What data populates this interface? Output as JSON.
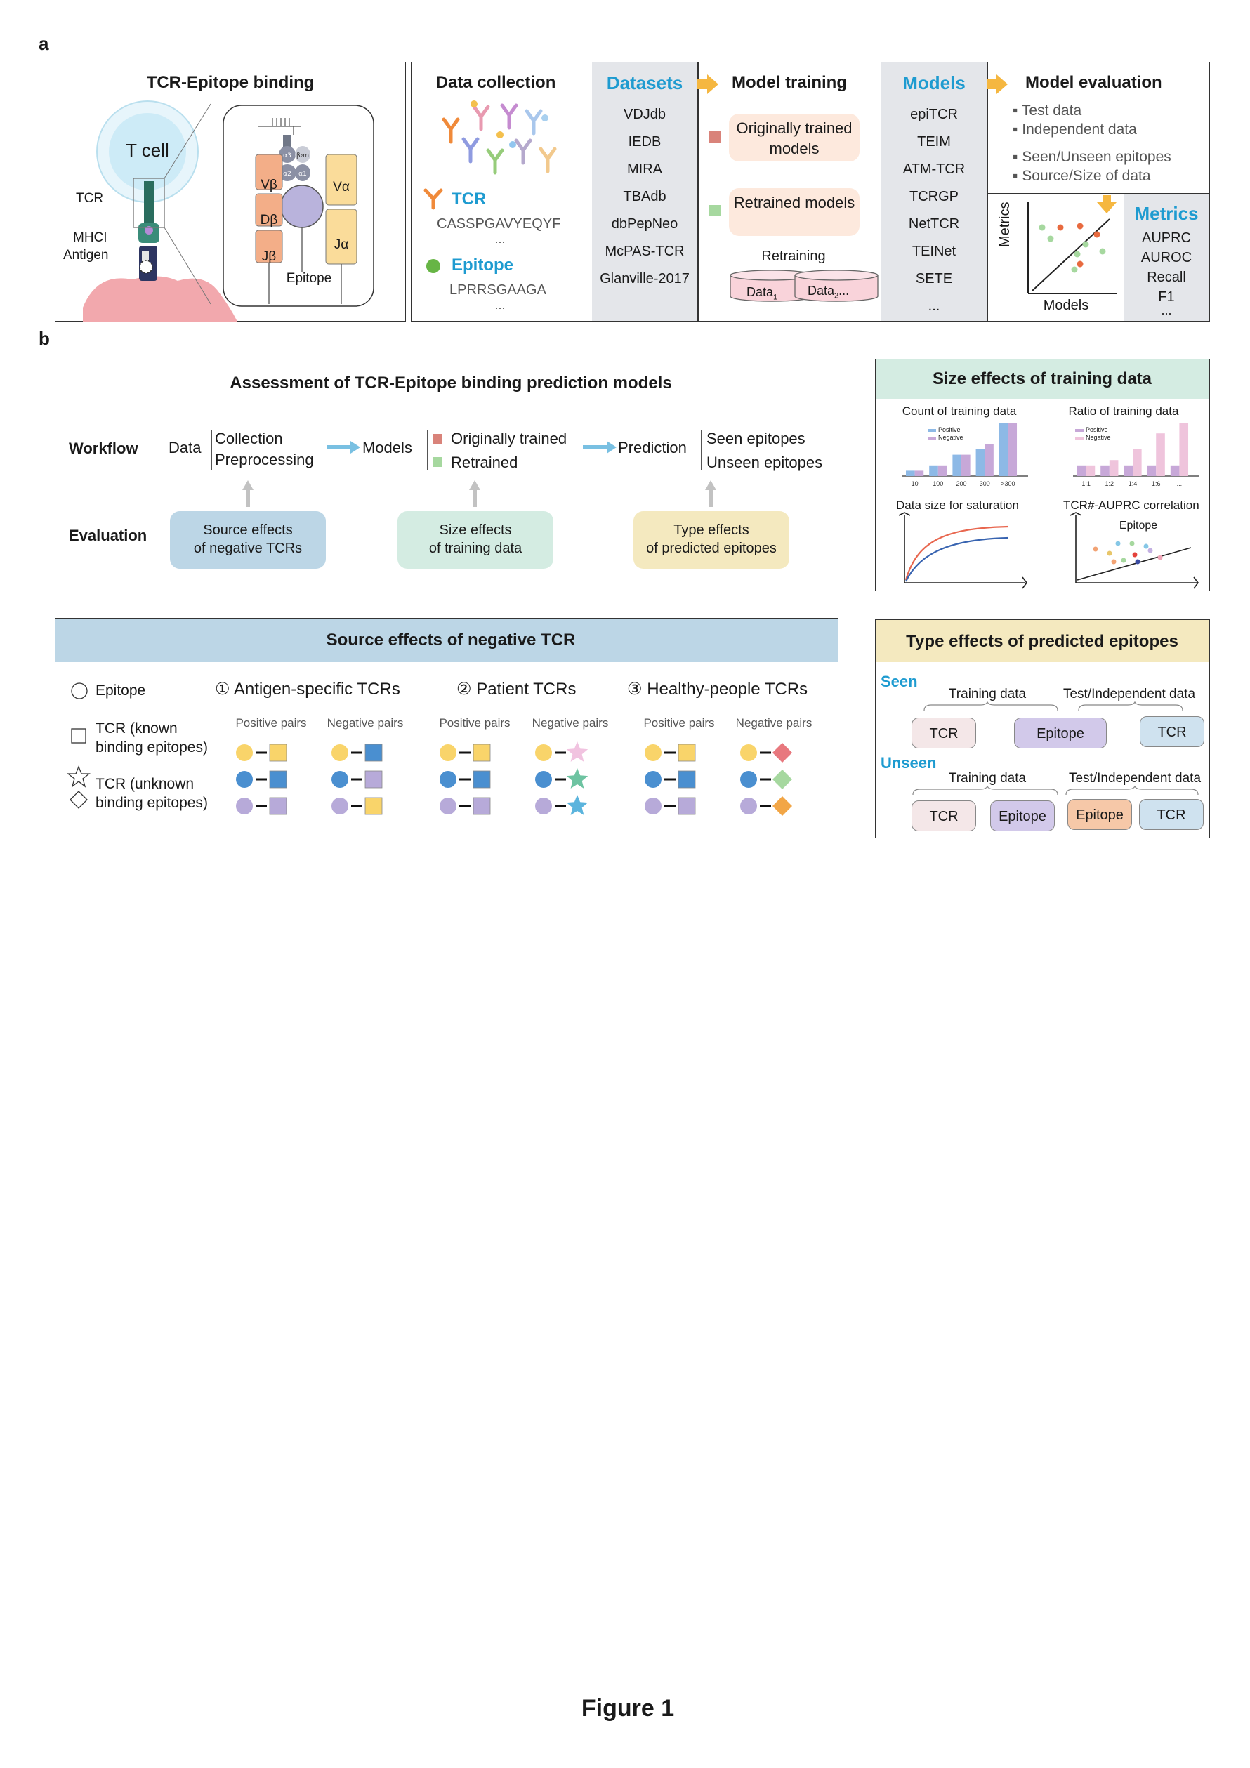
{
  "figure_title": "Figure 1",
  "panel_labels": {
    "a": "a",
    "b": "b"
  },
  "panel_a": {
    "binding": {
      "title": "TCR-Epitope binding",
      "t_cell": "T cell",
      "tcr": "TCR",
      "mhci": "MHCI",
      "antigen": "Antigen",
      "epitope": "Epitope",
      "chains": [
        "Vβ",
        "Dβ",
        "Jβ",
        "Vα",
        "Jα"
      ],
      "mhc_domains": [
        "α3",
        "β₂m",
        "α2",
        "α1"
      ]
    },
    "data_collection": {
      "title": "Data collection",
      "tcr_label": "TCR",
      "tcr_seq": "CASSPGAVYEQYF",
      "tcr_more": "...",
      "epitope_label": "Epitope",
      "epitope_seq": "LPRRSGAAGA",
      "epitope_more": "..."
    },
    "datasets": {
      "title": "Datasets",
      "items": [
        "VDJdb",
        "IEDB",
        "MIRA",
        "TBAdb",
        "dbPepNeo",
        "McPAS-TCR",
        "Glanville-2017"
      ]
    },
    "model_training": {
      "title": "Model training",
      "original": "Originally trained models",
      "retrained": "Retrained models",
      "retraining": "Retraining",
      "data1": "Data",
      "data1_sub": "1",
      "data2": "Data",
      "data2_sub": "2",
      "data2_more": "..."
    },
    "models": {
      "title": "Models",
      "items": [
        "epiTCR",
        "TEIM",
        "ATM-TCR",
        "TCRGP",
        "NetTCR",
        "TEINet",
        "SETE",
        "..."
      ]
    },
    "model_evaluation": {
      "title": "Model evaluation",
      "bullets": [
        "▪ Test data",
        "▪ Independent data",
        "▪ Seen/Unseen epitopes",
        "▪ Source/Size of data"
      ],
      "x_label": "Models",
      "y_label": "Metrics"
    },
    "metrics": {
      "title": "Metrics",
      "items": [
        "AUPRC",
        "AUROC",
        "Recall",
        "F1",
        "..."
      ]
    }
  },
  "panel_b": {
    "assessment": {
      "title": "Assessment of TCR-Epitope binding prediction models",
      "workflow_label": "Workflow",
      "evaluation_label": "Evaluation",
      "data": "Data",
      "collection": "Collection",
      "preprocessing": "Preprocessing",
      "models": "Models",
      "originally_trained": "Originally trained",
      "retrained": "Retrained",
      "prediction": "Prediction",
      "seen": "Seen epitopes",
      "unseen": "Unseen epitopes",
      "eval_source_1": "Source effects",
      "eval_source_2": "of negative TCRs",
      "eval_size_1": "Size effects",
      "eval_size_2": "of training data",
      "eval_type_1": "Type effects",
      "eval_type_2": "of predicted epitopes"
    },
    "size_effects": {
      "title": "Size effects of training data",
      "count_title": "Count of training data",
      "ratio_title": "Ratio of training data",
      "saturation_title": "Data size for saturation",
      "correlation_title": "TCR#-AUPRC correlation",
      "correlation_legend": "Epitope",
      "legend_positive": "Positive",
      "legend_negative": "Negative",
      "count_ticks": [
        "10",
        "100",
        "200",
        "300",
        ">300"
      ],
      "ratio_ticks": [
        "1:1",
        "1:2",
        "1:4",
        "1:6",
        "..."
      ]
    },
    "source_effects": {
      "title": "Source effects  of negative TCR",
      "legend_epitope": "Epitope",
      "legend_tcr_known_1": "TCR (known",
      "legend_tcr_known_2": "binding epitopes)",
      "legend_tcr_unknown_1": "TCR (unknown",
      "legend_tcr_unknown_2": "binding epitopes)",
      "groups": [
        {
          "num": "①",
          "name": "Antigen-specific TCRs"
        },
        {
          "num": "②",
          "name": "Patient TCRs"
        },
        {
          "num": "③",
          "name": "Healthy-people TCRs"
        }
      ],
      "positive_pairs": "Positive pairs",
      "negative_pairs": "Negative pairs"
    },
    "type_effects": {
      "title": "Type effects of predicted epitopes",
      "seen": "Seen",
      "unseen": "Unseen",
      "training_data": "Training data",
      "test_data": "Test/Independent data",
      "tcr": "TCR",
      "epitope": "Epitope"
    }
  },
  "colors": {
    "accent_blue": "#1e9bd0",
    "original_red": "#d9837a",
    "retrained_green": "#a6d89f",
    "source_bg": "#bcd6e6",
    "size_bg": "#d4ece2",
    "type_bg": "#f4e9bf"
  },
  "chart_data": [
    {
      "type": "bar",
      "title": "Count of training data",
      "categories": [
        "10",
        "100",
        "200",
        "300",
        ">300"
      ],
      "series": [
        {
          "name": "Positive",
          "values": [
            1,
            2,
            4,
            5,
            10
          ]
        },
        {
          "name": "Negative",
          "values": [
            1,
            2,
            4,
            6,
            10
          ]
        }
      ]
    },
    {
      "type": "bar",
      "title": "Ratio of training data",
      "categories": [
        "1:1",
        "1:2",
        "1:4",
        "1:6",
        "..."
      ],
      "series": [
        {
          "name": "Positive",
          "values": [
            2,
            2,
            2,
            2,
            2
          ]
        },
        {
          "name": "Negative",
          "values": [
            2,
            3,
            5,
            8,
            10
          ]
        }
      ]
    }
  ]
}
